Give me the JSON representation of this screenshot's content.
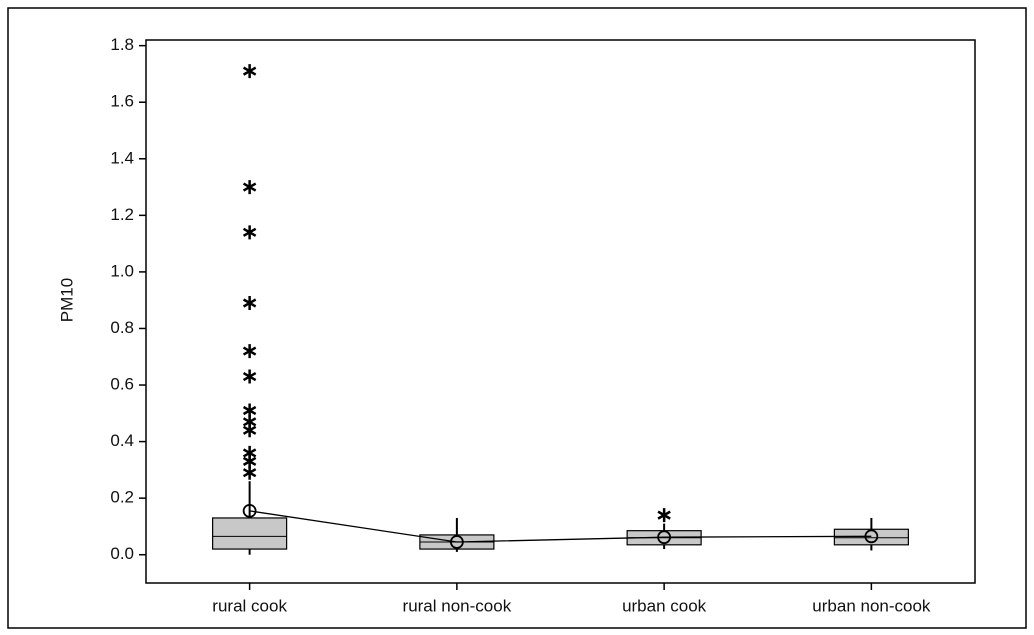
{
  "chart_data": {
    "type": "box",
    "y_label": "PM10",
    "categories": [
      "rural cook",
      "rural non-cook",
      "urban cook",
      "urban non-cook"
    ],
    "box_color": "#c8c8c8",
    "boxes": [
      {
        "whisker_low": 0.0,
        "q1": 0.02,
        "median": 0.065,
        "q3": 0.13,
        "whisker_high": 0.26,
        "mean": 0.155,
        "outliers": [
          1.71,
          1.3,
          1.14,
          0.89,
          0.72,
          0.63,
          0.51,
          0.47,
          0.44,
          0.36,
          0.33,
          0.29
        ]
      },
      {
        "whisker_low": 0.01,
        "q1": 0.02,
        "median": 0.045,
        "q3": 0.07,
        "whisker_high": 0.13,
        "mean": 0.045,
        "outliers": []
      },
      {
        "whisker_low": 0.02,
        "q1": 0.035,
        "median": 0.06,
        "q3": 0.085,
        "whisker_high": 0.11,
        "mean": 0.062,
        "outliers": [
          0.14
        ]
      },
      {
        "whisker_low": 0.015,
        "q1": 0.035,
        "median": 0.06,
        "q3": 0.09,
        "whisker_high": 0.13,
        "mean": 0.065,
        "outliers": []
      }
    ],
    "ylim": [
      -0.1,
      1.82
    ],
    "yticks": [
      {
        "value": 0,
        "label": "0.0"
      },
      {
        "value": 0.2,
        "label": "0.2"
      },
      {
        "value": 0.4,
        "label": "0.4"
      },
      {
        "value": 0.6,
        "label": "0.6"
      },
      {
        "value": 0.8,
        "label": "0.8"
      },
      {
        "value": 1.0,
        "label": "1.0"
      },
      {
        "value": 1.2,
        "label": "1.2"
      },
      {
        "value": 1.4,
        "label": "1.4"
      },
      {
        "value": 1.6,
        "label": "1.6"
      },
      {
        "value": 1.8,
        "label": "1.8"
      }
    ]
  }
}
